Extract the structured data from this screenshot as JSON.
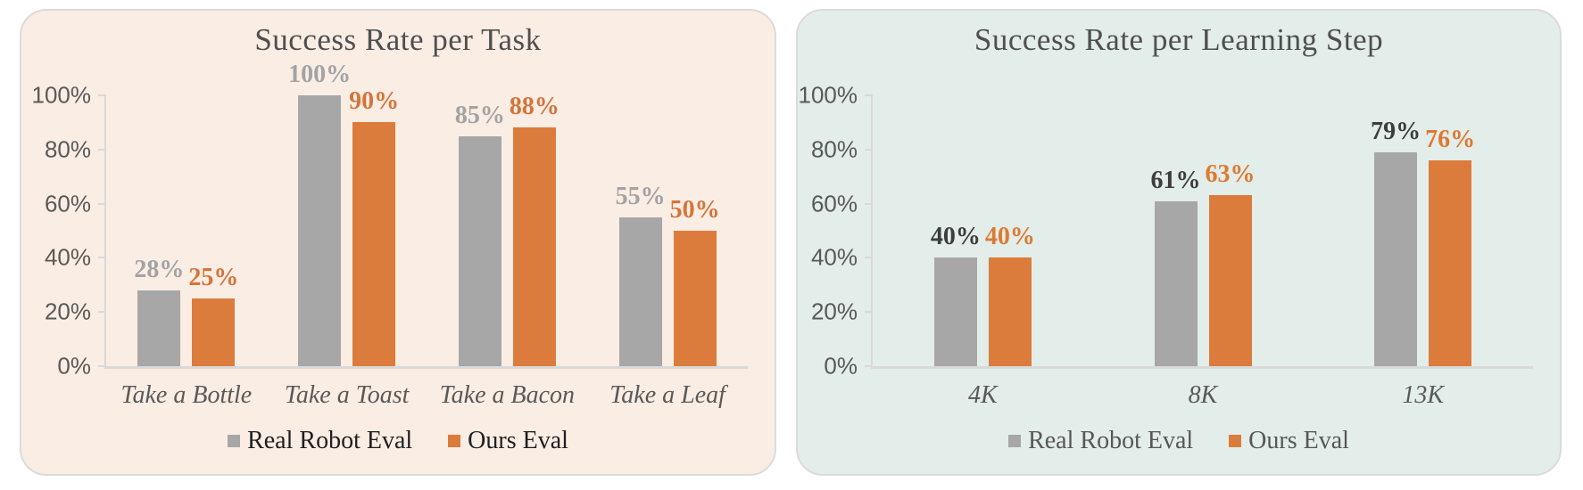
{
  "page": {
    "background": "#FFFFFF"
  },
  "chart_data": [
    {
      "type": "bar",
      "title": "Success Rate per Task",
      "categories": [
        "Take a Bottle",
        "Take a Toast",
        "Take a Bacon",
        "Take a Leaf"
      ],
      "series": [
        {
          "name": "Real Robot Eval",
          "color": "#A7A7A7",
          "label_color": "#A3A3A3",
          "values": [
            28,
            100,
            85,
            55
          ],
          "labels": [
            "28%",
            "100%",
            "85%",
            "55%"
          ]
        },
        {
          "name": "Ours Eval",
          "color": "#DC7C3C",
          "label_color": "#D5743A",
          "values": [
            25,
            90,
            88,
            50
          ],
          "labels": [
            "25%",
            "90%",
            "88%",
            "50%"
          ]
        }
      ],
      "ylim": [
        0,
        100
      ],
      "yticks": [
        100,
        80,
        60,
        40,
        20,
        0
      ],
      "ytick_labels": [
        "100%",
        "80%",
        "60%",
        "40%",
        "20%",
        "0%"
      ],
      "grid": false,
      "legend_position": "bottom",
      "panel_bg": "#FAEDE4",
      "axis_color": "#D9D9D9",
      "text_color": "#595959",
      "legend_text_color": "#1F1F1F"
    },
    {
      "type": "bar",
      "title": "Success Rate per Learning Step",
      "categories": [
        "4K",
        "8K",
        "13K"
      ],
      "series": [
        {
          "name": "Real Robot Eval",
          "color": "#A7A7A7",
          "label_color": "#3D3D3D",
          "values": [
            40,
            61,
            79
          ],
          "labels": [
            "40%",
            "61%",
            "79%"
          ]
        },
        {
          "name": "Ours Eval",
          "color": "#DC7C3C",
          "label_color": "#DC7A33",
          "values": [
            40,
            63,
            76
          ],
          "labels": [
            "40%",
            "63%",
            "76%"
          ]
        }
      ],
      "ylim": [
        0,
        100
      ],
      "yticks": [
        100,
        80,
        60,
        40,
        20,
        0
      ],
      "ytick_labels": [
        "100%",
        "80%",
        "60%",
        "40%",
        "20%",
        "0%"
      ],
      "grid": false,
      "legend_position": "bottom",
      "panel_bg": "#E3EDE9",
      "axis_color": "#D9D9D9",
      "text_color": "#595959",
      "legend_text_color": "#575757"
    }
  ]
}
